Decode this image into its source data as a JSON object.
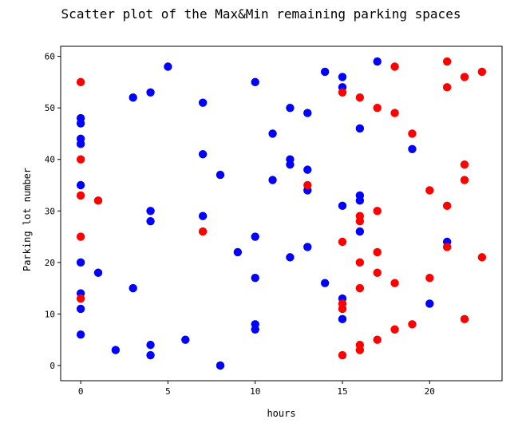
{
  "chart_data": {
    "type": "scatter",
    "title": "Scatter plot of the Max&Min remaining parking spaces",
    "xlabel": "hours",
    "ylabel": "Parking lot number",
    "xlim": [
      -1.15,
      24.15
    ],
    "ylim": [
      -2.95,
      61.95
    ],
    "xticks": [
      0,
      5,
      10,
      15,
      20
    ],
    "yticks": [
      0,
      10,
      20,
      30,
      40,
      50,
      60
    ],
    "grid": false,
    "legend": "none",
    "series": [
      {
        "color": "#0000ff",
        "points": [
          [
            0,
            48
          ],
          [
            0,
            47
          ],
          [
            0,
            44
          ],
          [
            0,
            43
          ],
          [
            0,
            35
          ],
          [
            0,
            20
          ],
          [
            0,
            14
          ],
          [
            0,
            11
          ],
          [
            0,
            6
          ],
          [
            1,
            18
          ],
          [
            2,
            3
          ],
          [
            3,
            52
          ],
          [
            3,
            15
          ],
          [
            4,
            53
          ],
          [
            4,
            30
          ],
          [
            4,
            28
          ],
          [
            4,
            4
          ],
          [
            4,
            2
          ],
          [
            5,
            58
          ],
          [
            6,
            5
          ],
          [
            7,
            51
          ],
          [
            7,
            41
          ],
          [
            7,
            29
          ],
          [
            8,
            37
          ],
          [
            8,
            0
          ],
          [
            9,
            22
          ],
          [
            10,
            55
          ],
          [
            10,
            25
          ],
          [
            10,
            17
          ],
          [
            10,
            8
          ],
          [
            10,
            7
          ],
          [
            11,
            45
          ],
          [
            11,
            36
          ],
          [
            12,
            50
          ],
          [
            12,
            40
          ],
          [
            12,
            39
          ],
          [
            12,
            21
          ],
          [
            13,
            49
          ],
          [
            13,
            38
          ],
          [
            13,
            34
          ],
          [
            13,
            23
          ],
          [
            14,
            57
          ],
          [
            14,
            16
          ],
          [
            15,
            56
          ],
          [
            15,
            54
          ],
          [
            15,
            31
          ],
          [
            15,
            13
          ],
          [
            15,
            9
          ],
          [
            16,
            46
          ],
          [
            16,
            33
          ],
          [
            16,
            32
          ],
          [
            16,
            26
          ],
          [
            17,
            59
          ],
          [
            19,
            42
          ],
          [
            20,
            12
          ],
          [
            21,
            24
          ]
        ]
      },
      {
        "color": "#ff0000",
        "points": [
          [
            0,
            55
          ],
          [
            0,
            40
          ],
          [
            0,
            33
          ],
          [
            0,
            25
          ],
          [
            0,
            13
          ],
          [
            1,
            32
          ],
          [
            7,
            26
          ],
          [
            13,
            35
          ],
          [
            15,
            53
          ],
          [
            15,
            24
          ],
          [
            15,
            12
          ],
          [
            15,
            11
          ],
          [
            15,
            2
          ],
          [
            16,
            52
          ],
          [
            16,
            29
          ],
          [
            16,
            28
          ],
          [
            16,
            20
          ],
          [
            16,
            15
          ],
          [
            16,
            4
          ],
          [
            16,
            3
          ],
          [
            17,
            50
          ],
          [
            17,
            30
          ],
          [
            17,
            22
          ],
          [
            17,
            18
          ],
          [
            17,
            5
          ],
          [
            18,
            58
          ],
          [
            18,
            49
          ],
          [
            18,
            16
          ],
          [
            18,
            7
          ],
          [
            19,
            45
          ],
          [
            19,
            8
          ],
          [
            20,
            34
          ],
          [
            20,
            17
          ],
          [
            21,
            59
          ],
          [
            21,
            54
          ],
          [
            21,
            31
          ],
          [
            21,
            23
          ],
          [
            22,
            56
          ],
          [
            22,
            39
          ],
          [
            22,
            36
          ],
          [
            22,
            9
          ],
          [
            23,
            57
          ],
          [
            23,
            21
          ]
        ]
      }
    ]
  }
}
